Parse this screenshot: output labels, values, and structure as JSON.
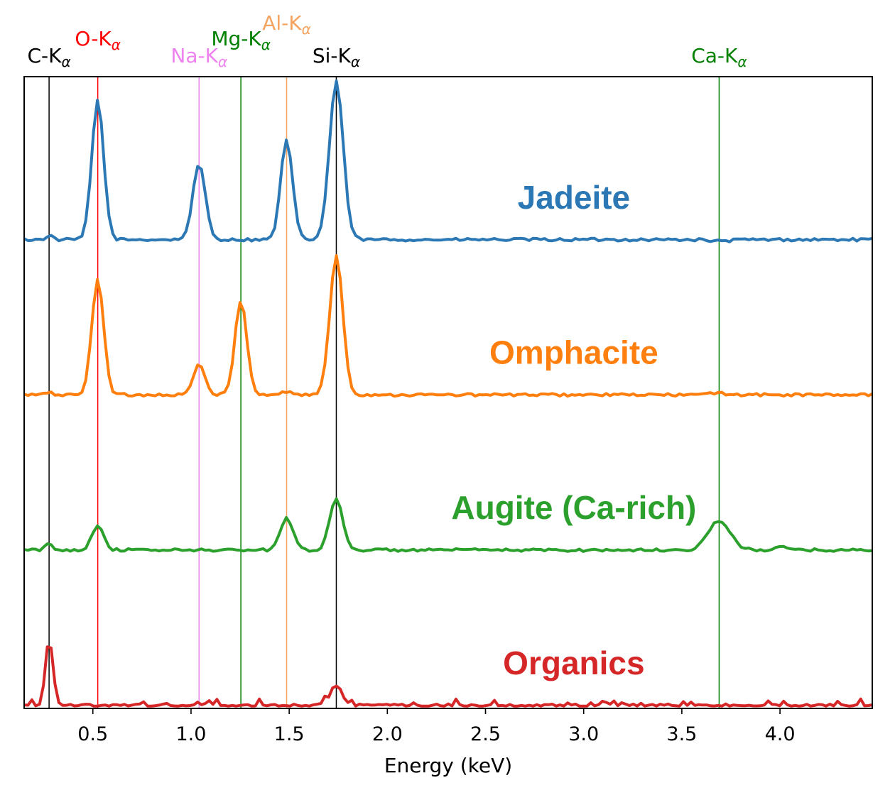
{
  "chart_data": {
    "type": "line",
    "xlabel": "Energy (keV)",
    "ylabel": "",
    "xlim": [
      0.15,
      4.47
    ],
    "y_axis_ticks": false,
    "grid": false,
    "x_ticks": [
      "0.5",
      "1.0",
      "1.5",
      "2.0",
      "2.5",
      "3.0",
      "3.5",
      "4.0"
    ],
    "reference_lines": [
      {
        "element": "C",
        "line": "α",
        "energy": 0.277,
        "color": "#000000",
        "label_row": 1
      },
      {
        "element": "O",
        "line": "α",
        "energy": 0.525,
        "color": "#ff0000",
        "label_row": 0
      },
      {
        "element": "Na",
        "line": "α",
        "energy": 1.041,
        "color": "#ee82ee",
        "label_row": 1
      },
      {
        "element": "Mg",
        "line": "α",
        "energy": 1.254,
        "color": "#008000",
        "label_row": 0
      },
      {
        "element": "Al",
        "line": "α",
        "energy": 1.487,
        "color": "#f4a460",
        "label_row": -1
      },
      {
        "element": "Si",
        "line": "α",
        "energy": 1.74,
        "color": "#000000",
        "label_row": 1
      },
      {
        "element": "Ca",
        "line": "α",
        "energy": 3.69,
        "color": "#008000",
        "label_row": 1
      }
    ],
    "series": [
      {
        "name": "Jadeite",
        "color": "#2b78b5",
        "offset": 3.0,
        "label_x": 2.95,
        "peaks": [
          [
            0.277,
            0.03,
            0.015
          ],
          [
            0.525,
            0.9,
            0.03
          ],
          [
            1.041,
            0.48,
            0.032
          ],
          [
            1.487,
            0.64,
            0.03
          ],
          [
            1.74,
            1.02,
            0.035
          ],
          [
            3.69,
            -0.01,
            0.05
          ]
        ]
      },
      {
        "name": "Omphacite",
        "color": "#ff7f0e",
        "offset": 2.0,
        "label_x": 2.95,
        "peaks": [
          [
            0.277,
            0.02,
            0.015
          ],
          [
            0.525,
            0.75,
            0.03
          ],
          [
            1.041,
            0.19,
            0.03
          ],
          [
            1.254,
            0.61,
            0.03
          ],
          [
            1.487,
            0.02,
            0.03
          ],
          [
            1.74,
            0.9,
            0.033
          ],
          [
            3.69,
            0.01,
            0.05
          ]
        ]
      },
      {
        "name": "Augite (Ca-rich)",
        "color": "#2ca02c",
        "offset": 1.0,
        "label_x": 2.95,
        "peaks": [
          [
            0.277,
            0.04,
            0.018
          ],
          [
            0.525,
            0.16,
            0.03
          ],
          [
            1.487,
            0.21,
            0.032
          ],
          [
            1.74,
            0.33,
            0.033
          ],
          [
            3.69,
            0.19,
            0.055
          ],
          [
            4.0,
            0.02,
            0.03
          ]
        ]
      },
      {
        "name": "Organics",
        "color": "#d62728",
        "offset": 0.0,
        "label_x": 2.95,
        "peaks": [
          [
            0.277,
            0.43,
            0.018
          ],
          [
            1.74,
            0.13,
            0.03
          ],
          [
            1.68,
            0.04,
            0.01
          ]
        ]
      }
    ]
  }
}
